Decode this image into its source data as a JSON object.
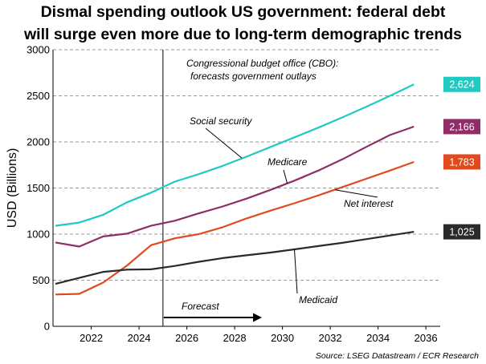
{
  "chart_data": {
    "type": "line",
    "title_line1": "Dismal spending outlook US government: federal debt",
    "title_line2": "will surge even more due to long-term demographic trends",
    "ylabel": "USD (Billions)",
    "ylim": [
      0,
      3000
    ],
    "xlim": [
      2020.4,
      2036.6
    ],
    "yticks": [
      0,
      500,
      1000,
      1500,
      2000,
      2500,
      3000
    ],
    "xticks": [
      2022,
      2024,
      2026,
      2028,
      2030,
      2032,
      2034,
      2036
    ],
    "grid": "horizontal dashed",
    "forecast_start": 2025,
    "series": [
      {
        "name": "Social security",
        "color": "#20c9c2",
        "end_label": "2,624",
        "x": [
          2020.5,
          2021.5,
          2022.5,
          2023.5,
          2024.5,
          2025.5,
          2026.5,
          2027.5,
          2028.5,
          2029.5,
          2030.5,
          2031.5,
          2032.5,
          2033.5,
          2034.5,
          2035.5
        ],
        "y": [
          1090,
          1125,
          1210,
          1345,
          1450,
          1570,
          1650,
          1740,
          1840,
          1945,
          2050,
          2155,
          2265,
          2380,
          2500,
          2624
        ]
      },
      {
        "name": "Medicare",
        "color": "#8e2d66",
        "end_label": "2,166",
        "x": [
          2020.5,
          2021.5,
          2022.5,
          2023.5,
          2024.5,
          2025.5,
          2026.5,
          2027.5,
          2028.5,
          2029.5,
          2030.5,
          2031.5,
          2032.5,
          2033.5,
          2034.5,
          2035.5
        ],
        "y": [
          910,
          865,
          975,
          1005,
          1090,
          1145,
          1225,
          1300,
          1385,
          1480,
          1580,
          1690,
          1810,
          1945,
          2075,
          2166
        ]
      },
      {
        "name": "Net interest",
        "color": "#e04a1c",
        "end_label": "1,783",
        "x": [
          2020.5,
          2021.5,
          2022.5,
          2023.5,
          2024.5,
          2025.5,
          2026.5,
          2027.5,
          2028.5,
          2029.5,
          2030.5,
          2031.5,
          2032.5,
          2033.5,
          2034.5,
          2035.5
        ],
        "y": [
          345,
          352,
          475,
          660,
          880,
          955,
          1000,
          1075,
          1170,
          1255,
          1335,
          1420,
          1510,
          1600,
          1690,
          1783
        ]
      },
      {
        "name": "Medicaid",
        "color": "#2a2a2a",
        "end_label": "1,025",
        "x": [
          2020.5,
          2021.5,
          2022.5,
          2023.5,
          2024.5,
          2025.5,
          2026.5,
          2027.5,
          2028.5,
          2029.5,
          2030.5,
          2031.5,
          2032.5,
          2033.5,
          2034.5,
          2035.5
        ],
        "y": [
          460,
          525,
          590,
          615,
          618,
          655,
          700,
          740,
          770,
          800,
          835,
          870,
          905,
          945,
          985,
          1025
        ]
      }
    ],
    "annotations": {
      "cbo_line1": "Congressional budget office (CBO):",
      "cbo_line2": "forecasts government outlays",
      "forecast": "Forecast"
    },
    "source": "Source: LSEG Datastream / ECR Research"
  }
}
